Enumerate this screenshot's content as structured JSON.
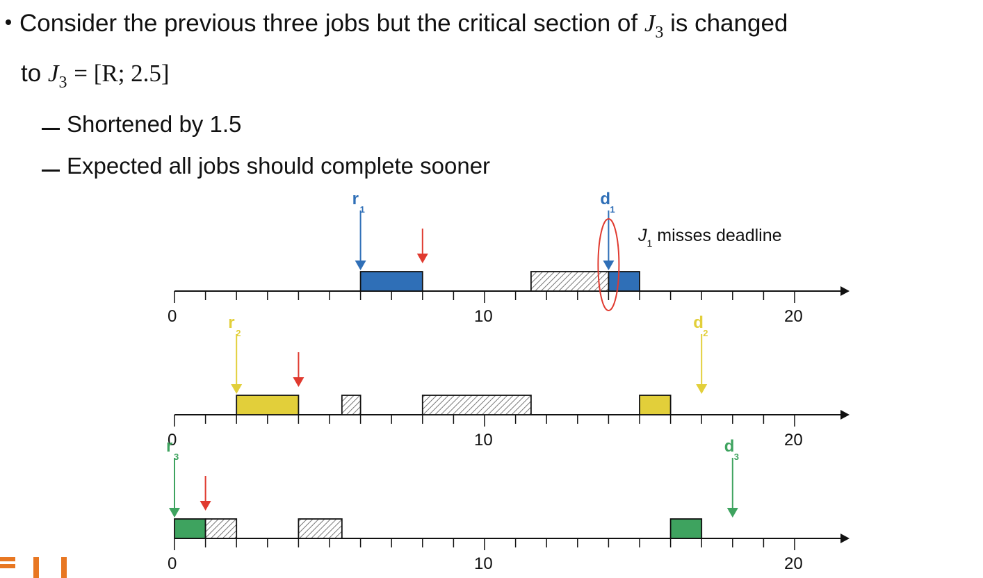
{
  "bullet_main": {
    "prefix": "Consider the previous three jobs but the critical section of ",
    "job_symbol": "J",
    "job_subscript": "3",
    "suffix": " is changed",
    "line2_prefix": "to ",
    "equation_rhs": "= [R; 2.5]"
  },
  "sub_bullets": [
    "Shortened by 1.5",
    "Expected all jobs should complete sooner"
  ],
  "annotation": {
    "symbol": "J",
    "subscript": "1",
    "text": "misses deadline"
  },
  "colors": {
    "job1": "#2f6fb7",
    "job2": "#e2cf3a",
    "job3": "#3ea35f",
    "red": "#e03a2f",
    "hatch": "#888888",
    "highlight": "#e03a2f"
  },
  "chart_data": [
    {
      "type": "timeline",
      "job": "J1",
      "xlim": [
        0,
        22
      ],
      "tick_labels": [
        "0",
        "10",
        "20"
      ],
      "release": {
        "label": "r",
        "sub": "1",
        "x": 6
      },
      "deadline": {
        "label": "d",
        "sub": "1",
        "x": 14
      },
      "lock_request_x": 8,
      "segments": [
        {
          "start": 6,
          "end": 8,
          "kind": "executing"
        },
        {
          "start": 11.5,
          "end": 14,
          "kind": "blocked"
        },
        {
          "start": 14,
          "end": 15,
          "kind": "executing"
        }
      ],
      "deadline_highlighted": true
    },
    {
      "type": "timeline",
      "job": "J2",
      "xlim": [
        0,
        22
      ],
      "tick_labels": [
        "0",
        "10",
        "20"
      ],
      "release": {
        "label": "r",
        "sub": "2",
        "x": 2
      },
      "deadline": {
        "label": "d",
        "sub": "2",
        "x": 17
      },
      "lock_request_x": 4,
      "segments": [
        {
          "start": 2,
          "end": 4,
          "kind": "executing"
        },
        {
          "start": 5.4,
          "end": 6,
          "kind": "blocked"
        },
        {
          "start": 8,
          "end": 11.5,
          "kind": "blocked"
        },
        {
          "start": 15,
          "end": 16,
          "kind": "executing"
        }
      ]
    },
    {
      "type": "timeline",
      "job": "J3",
      "xlim": [
        0,
        22
      ],
      "tick_labels": [
        "0",
        "10",
        "20"
      ],
      "release": {
        "label": "r",
        "sub": "3",
        "x": 0
      },
      "deadline": {
        "label": "d",
        "sub": "3",
        "x": 18
      },
      "lock_request_x": 1,
      "segments": [
        {
          "start": 0,
          "end": 1,
          "kind": "executing"
        },
        {
          "start": 1,
          "end": 2,
          "kind": "blocked"
        },
        {
          "start": 4,
          "end": 5.4,
          "kind": "blocked"
        },
        {
          "start": 16,
          "end": 17,
          "kind": "executing"
        }
      ]
    }
  ]
}
